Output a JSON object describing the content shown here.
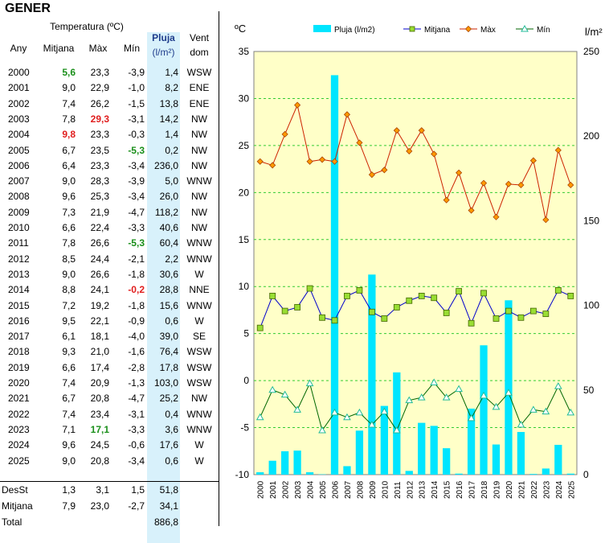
{
  "title": "GENER",
  "table": {
    "header_temp": "Temperatura (ºC)",
    "header_any": "Any",
    "header_mitjana": "Mitjana",
    "header_max": "Màx",
    "header_min": "Mín",
    "header_pluja": "Pluja",
    "header_pluja_unit": "(l/m²)",
    "header_vent": "Vent",
    "header_vent_sub": "dom",
    "rows": [
      {
        "year": "2000",
        "mean": "5,6",
        "max": "23,3",
        "min": "-3,9",
        "rain": "1,4",
        "wind": "WSW",
        "mean_mark": "green"
      },
      {
        "year": "2001",
        "mean": "9,0",
        "max": "22,9",
        "min": "-1,0",
        "rain": "8,2",
        "wind": "ENE"
      },
      {
        "year": "2002",
        "mean": "7,4",
        "max": "26,2",
        "min": "-1,5",
        "rain": "13,8",
        "wind": "ENE"
      },
      {
        "year": "2003",
        "mean": "7,8",
        "max": "29,3",
        "min": "-3,1",
        "rain": "14,2",
        "wind": "NW",
        "max_mark": "red"
      },
      {
        "year": "2004",
        "mean": "9,8",
        "max": "23,3",
        "min": "-0,3",
        "rain": "1,4",
        "wind": "NW",
        "mean_mark": "red"
      },
      {
        "year": "2005",
        "mean": "6,7",
        "max": "23,5",
        "min": "-5,3",
        "rain": "0,2",
        "wind": "NW",
        "min_mark": "green"
      },
      {
        "year": "2006",
        "mean": "6,4",
        "max": "23,3",
        "min": "-3,4",
        "rain": "236,0",
        "wind": "NW"
      },
      {
        "year": "2007",
        "mean": "9,0",
        "max": "28,3",
        "min": "-3,9",
        "rain": "5,0",
        "wind": "WNW"
      },
      {
        "year": "2008",
        "mean": "9,6",
        "max": "25,3",
        "min": "-3,4",
        "rain": "26,0",
        "wind": "NW"
      },
      {
        "year": "2009",
        "mean": "7,3",
        "max": "21,9",
        "min": "-4,7",
        "rain": "118,2",
        "wind": "NW"
      },
      {
        "year": "2010",
        "mean": "6,6",
        "max": "22,4",
        "min": "-3,3",
        "rain": "40,6",
        "wind": "NW"
      },
      {
        "year": "2011",
        "mean": "7,8",
        "max": "26,6",
        "min": "-5,3",
        "rain": "60,4",
        "wind": "WNW",
        "min_mark": "green"
      },
      {
        "year": "2012",
        "mean": "8,5",
        "max": "24,4",
        "min": "-2,1",
        "rain": "2,2",
        "wind": "WNW"
      },
      {
        "year": "2013",
        "mean": "9,0",
        "max": "26,6",
        "min": "-1,8",
        "rain": "30,6",
        "wind": "W"
      },
      {
        "year": "2014",
        "mean": "8,8",
        "max": "24,1",
        "min": "-0,2",
        "rain": "28,8",
        "wind": "NNE",
        "min_mark": "red"
      },
      {
        "year": "2015",
        "mean": "7,2",
        "max": "19,2",
        "min": "-1,8",
        "rain": "15,6",
        "wind": "WNW"
      },
      {
        "year": "2016",
        "mean": "9,5",
        "max": "22,1",
        "min": "-0,9",
        "rain": "0,6",
        "wind": "W"
      },
      {
        "year": "2017",
        "mean": "6,1",
        "max": "18,1",
        "min": "-4,0",
        "rain": "39,0",
        "wind": "SE"
      },
      {
        "year": "2018",
        "mean": "9,3",
        "max": "21,0",
        "min": "-1,6",
        "rain": "76,4",
        "wind": "WSW"
      },
      {
        "year": "2019",
        "mean": "6,6",
        "max": "17,4",
        "min": "-2,8",
        "rain": "17,8",
        "wind": "WSW"
      },
      {
        "year": "2020",
        "mean": "7,4",
        "max": "20,9",
        "min": "-1,3",
        "rain": "103,0",
        "wind": "WSW"
      },
      {
        "year": "2021",
        "mean": "6,7",
        "max": "20,8",
        "min": "-4,7",
        "rain": "25,2",
        "wind": "NW"
      },
      {
        "year": "2022",
        "mean": "7,4",
        "max": "23,4",
        "min": "-3,1",
        "rain": "0,4",
        "wind": "WNW"
      },
      {
        "year": "2023",
        "mean": "7,1",
        "max": "17,1",
        "min": "-3,3",
        "rain": "3,6",
        "wind": "WNW",
        "max_mark": "green"
      },
      {
        "year": "2024",
        "mean": "9,6",
        "max": "24,5",
        "min": "-0,6",
        "rain": "17,6",
        "wind": "W"
      },
      {
        "year": "2025",
        "mean": "9,0",
        "max": "20,8",
        "min": "-3,4",
        "rain": "0,6",
        "wind": "W"
      }
    ],
    "desst": {
      "label": "DesSt",
      "mean": "1,3",
      "max": "3,1",
      "min": "1,5",
      "rain": "51,8"
    },
    "mitjana": {
      "label": "Mitjana",
      "mean": "7,9",
      "max": "23,0",
      "min": "-2,7",
      "rain": "34,1"
    },
    "total": {
      "label": "Total",
      "rain": "886,8"
    }
  },
  "chart_data": {
    "type": "bar+line",
    "categories": [
      "2000",
      "2001",
      "2002",
      "2003",
      "2004",
      "2005",
      "2006",
      "2007",
      "2008",
      "2009",
      "2010",
      "2011",
      "2012",
      "2013",
      "2014",
      "2015",
      "2016",
      "2017",
      "2018",
      "2019",
      "2020",
      "2021",
      "2022",
      "2023",
      "2024",
      "2025"
    ],
    "left_axis_label": "ºC",
    "right_axis_label": "l/m²",
    "left_ylim": [
      -10,
      35
    ],
    "right_ylim": [
      0,
      250
    ],
    "left_ticks": [
      -10,
      -5,
      0,
      5,
      10,
      15,
      20,
      25,
      30,
      35
    ],
    "right_ticks": [
      0,
      50,
      100,
      150,
      200,
      250
    ],
    "grid": true,
    "legend_position": "top",
    "series": [
      {
        "name": "Pluja (l/m2)",
        "type": "bar",
        "axis": "right",
        "color": "#00e5ff",
        "values": [
          1.4,
          8.2,
          13.8,
          14.2,
          1.4,
          0.2,
          236.0,
          5.0,
          26.0,
          118.2,
          40.6,
          60.4,
          2.2,
          30.6,
          28.8,
          15.6,
          0.6,
          39.0,
          76.4,
          17.8,
          103.0,
          25.2,
          0.4,
          3.6,
          17.6,
          0.6
        ]
      },
      {
        "name": "Mitjana",
        "type": "line",
        "axis": "left",
        "color": "#0000cc",
        "marker": "square",
        "marker_color": "#99dd33",
        "values": [
          5.6,
          9.0,
          7.4,
          7.8,
          9.8,
          6.7,
          6.4,
          9.0,
          9.6,
          7.3,
          6.6,
          7.8,
          8.5,
          9.0,
          8.8,
          7.2,
          9.5,
          6.1,
          9.3,
          6.6,
          7.4,
          6.7,
          7.4,
          7.1,
          9.6,
          9.0
        ]
      },
      {
        "name": "Màx",
        "type": "line",
        "axis": "left",
        "color": "#cc2200",
        "marker": "diamond",
        "marker_color": "#ff9900",
        "values": [
          23.3,
          22.9,
          26.2,
          29.3,
          23.3,
          23.5,
          23.3,
          28.3,
          25.3,
          21.9,
          22.4,
          26.6,
          24.4,
          26.6,
          24.1,
          19.2,
          22.1,
          18.1,
          21.0,
          17.4,
          20.9,
          20.8,
          23.4,
          17.1,
          24.5,
          20.8
        ]
      },
      {
        "name": "Mín",
        "type": "line",
        "axis": "left",
        "color": "#006600",
        "marker": "triangle",
        "marker_color": "#66ffcc",
        "values": [
          -3.9,
          -1.0,
          -1.5,
          -3.1,
          -0.3,
          -5.3,
          -3.4,
          -3.9,
          -3.4,
          -4.7,
          -3.3,
          -5.3,
          -2.1,
          -1.8,
          -0.2,
          -1.8,
          -0.9,
          -4.0,
          -1.6,
          -2.8,
          -1.3,
          -4.7,
          -3.1,
          -3.3,
          -0.6,
          -3.4
        ]
      }
    ]
  }
}
